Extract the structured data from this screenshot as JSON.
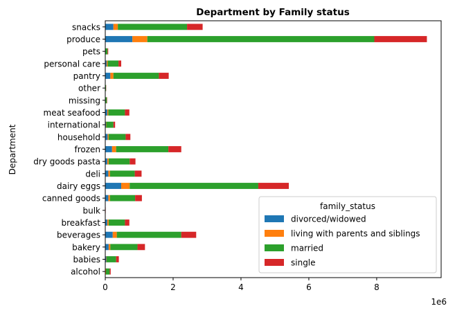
{
  "chart_data": {
    "type": "bar",
    "orientation": "horizontal",
    "stacked": true,
    "title": "Department by Family status",
    "xlabel": "",
    "ylabel": "Department",
    "x_multiplier_label": "1e6",
    "xlim": [
      0,
      9.9
    ],
    "xticks": [
      0,
      2,
      4,
      6,
      8
    ],
    "xtick_labels": [
      "0",
      "2",
      "4",
      "6",
      "8"
    ],
    "grid": false,
    "categories": [
      "alcohol",
      "babies",
      "bakery",
      "beverages",
      "breakfast",
      "bulk",
      "canned goods",
      "dairy eggs",
      "deli",
      "dry goods pasta",
      "frozen",
      "household",
      "international",
      "meat seafood",
      "missing",
      "other",
      "pantry",
      "personal care",
      "pets",
      "produce",
      "snacks"
    ],
    "series": [
      {
        "name": "divorced/widowed",
        "color": "#1f77b4",
        "values": [
          0.01,
          0.03,
          0.1,
          0.22,
          0.06,
          0.0,
          0.09,
          0.47,
          0.09,
          0.06,
          0.2,
          0.07,
          0.02,
          0.06,
          0.005,
          0.002,
          0.15,
          0.04,
          0.005,
          0.8,
          0.24
        ]
      },
      {
        "name": "living with parents and siblings",
        "color": "#ff7f0e",
        "values": [
          0.01,
          0.01,
          0.05,
          0.12,
          0.04,
          0.0,
          0.05,
          0.25,
          0.05,
          0.04,
          0.12,
          0.03,
          0.01,
          0.03,
          0.002,
          0.001,
          0.09,
          0.03,
          0.002,
          0.44,
          0.13
        ]
      },
      {
        "name": "married",
        "color": "#2ca02c",
        "values": [
          0.11,
          0.28,
          0.8,
          1.9,
          0.48,
          0.01,
          0.74,
          3.79,
          0.73,
          0.62,
          1.54,
          0.5,
          0.21,
          0.49,
          0.04,
          0.02,
          1.34,
          0.32,
          0.06,
          6.69,
          2.04
        ]
      },
      {
        "name": "single",
        "color": "#d62728",
        "values": [
          0.03,
          0.08,
          0.22,
          0.44,
          0.13,
          0.003,
          0.2,
          0.9,
          0.2,
          0.17,
          0.38,
          0.14,
          0.05,
          0.13,
          0.01,
          0.005,
          0.29,
          0.08,
          0.02,
          1.55,
          0.46
        ]
      }
    ],
    "legend": {
      "title": "family_status",
      "placement": "lower-right"
    }
  }
}
